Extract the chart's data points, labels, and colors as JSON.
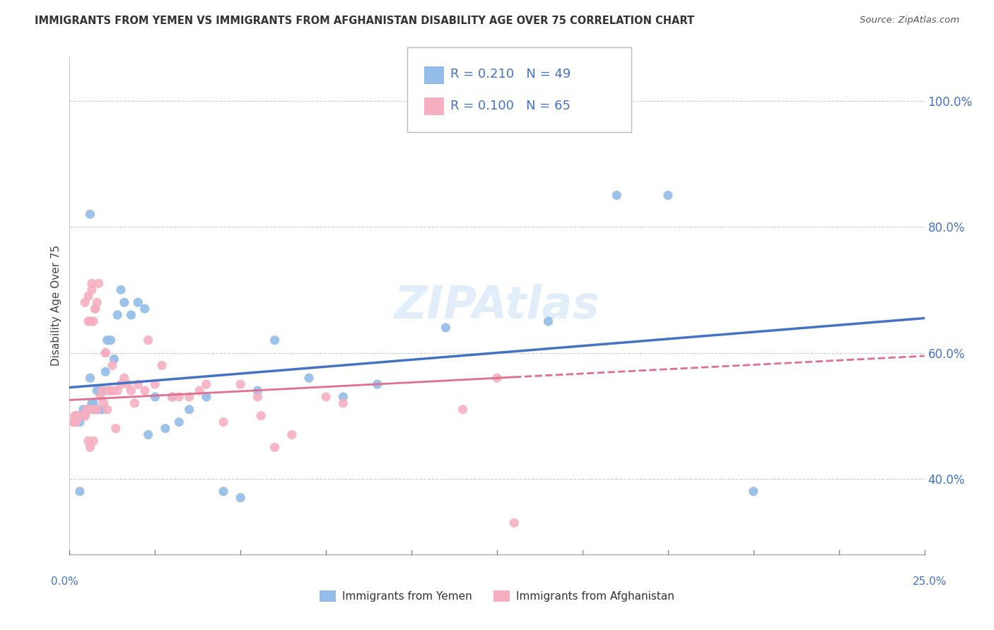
{
  "title": "IMMIGRANTS FROM YEMEN VS IMMIGRANTS FROM AFGHANISTAN DISABILITY AGE OVER 75 CORRELATION CHART",
  "source": "Source: ZipAtlas.com",
  "ylabel": "Disability Age Over 75",
  "xmin": 0.0,
  "xmax": 25.0,
  "ymin": 28.0,
  "ymax": 107.0,
  "ytick_vals": [
    40.0,
    60.0,
    80.0,
    100.0
  ],
  "ytick_labels": [
    "40.0%",
    "60.0%",
    "80.0%",
    "100.0%"
  ],
  "color_yemen": "#93bde8",
  "color_afghanistan": "#f5afc0",
  "color_blue": "#4472c4",
  "color_pink": "#e07090",
  "legend_r1": "R = 0.210",
  "legend_n1": "N = 49",
  "legend_r2": "R = 0.100",
  "legend_n2": "N = 65",
  "trend_yemen_x0": 0.0,
  "trend_yemen_y0": 54.5,
  "trend_yemen_x1": 25.0,
  "trend_yemen_y1": 65.5,
  "trend_afghan_x0": 0.0,
  "trend_afghan_y0": 52.5,
  "trend_afghan_x1": 25.0,
  "trend_afghan_y1": 59.5,
  "yemen_x": [
    0.15,
    0.2,
    0.25,
    0.3,
    0.35,
    0.4,
    0.45,
    0.5,
    0.55,
    0.6,
    0.65,
    0.7,
    0.75,
    0.8,
    0.85,
    0.9,
    0.95,
    1.0,
    1.05,
    1.1,
    1.2,
    1.3,
    1.4,
    1.5,
    1.6,
    1.8,
    2.0,
    2.2,
    2.5,
    2.8,
    3.0,
    3.5,
    4.0,
    4.5,
    5.0,
    5.5,
    6.0,
    7.0,
    8.0,
    9.0,
    11.0,
    14.0,
    16.0,
    17.5,
    20.0,
    0.3,
    0.6,
    2.3,
    3.2
  ],
  "yemen_y": [
    49,
    50,
    50,
    49,
    50,
    51,
    50,
    51,
    51,
    82,
    52,
    52,
    51,
    54,
    51,
    54,
    51,
    54,
    57,
    62,
    62,
    59,
    66,
    70,
    68,
    66,
    68,
    67,
    53,
    48,
    53,
    51,
    53,
    38,
    37,
    54,
    62,
    56,
    53,
    55,
    64,
    65,
    85,
    85,
    38,
    38,
    56,
    47,
    49
  ],
  "afghanistan_x": [
    0.1,
    0.15,
    0.2,
    0.25,
    0.3,
    0.35,
    0.4,
    0.45,
    0.5,
    0.55,
    0.6,
    0.65,
    0.7,
    0.75,
    0.8,
    0.85,
    0.9,
    0.95,
    1.0,
    1.05,
    1.1,
    1.15,
    1.2,
    1.3,
    1.4,
    1.5,
    1.6,
    1.7,
    1.8,
    1.9,
    2.0,
    2.2,
    2.5,
    2.7,
    3.0,
    3.2,
    3.5,
    4.0,
    4.5,
    5.0,
    6.0,
    7.5,
    0.45,
    0.55,
    0.6,
    0.65,
    0.7,
    0.75,
    0.8,
    1.05,
    1.15,
    1.25,
    1.35,
    2.3,
    3.8,
    5.5,
    5.6,
    6.5,
    8.0,
    11.5,
    12.5,
    13.0,
    0.55,
    0.6,
    0.7
  ],
  "afghanistan_y": [
    49,
    50,
    49,
    50,
    50,
    50,
    50,
    50,
    51,
    69,
    51,
    71,
    51,
    67,
    51,
    71,
    53,
    54,
    52,
    60,
    51,
    54,
    54,
    54,
    54,
    55,
    56,
    55,
    54,
    52,
    55,
    54,
    55,
    58,
    53,
    53,
    53,
    55,
    49,
    55,
    45,
    53,
    68,
    65,
    65,
    70,
    65,
    67,
    68,
    60,
    54,
    58,
    48,
    62,
    54,
    53,
    50,
    47,
    52,
    51,
    56,
    33,
    46,
    45,
    46
  ]
}
